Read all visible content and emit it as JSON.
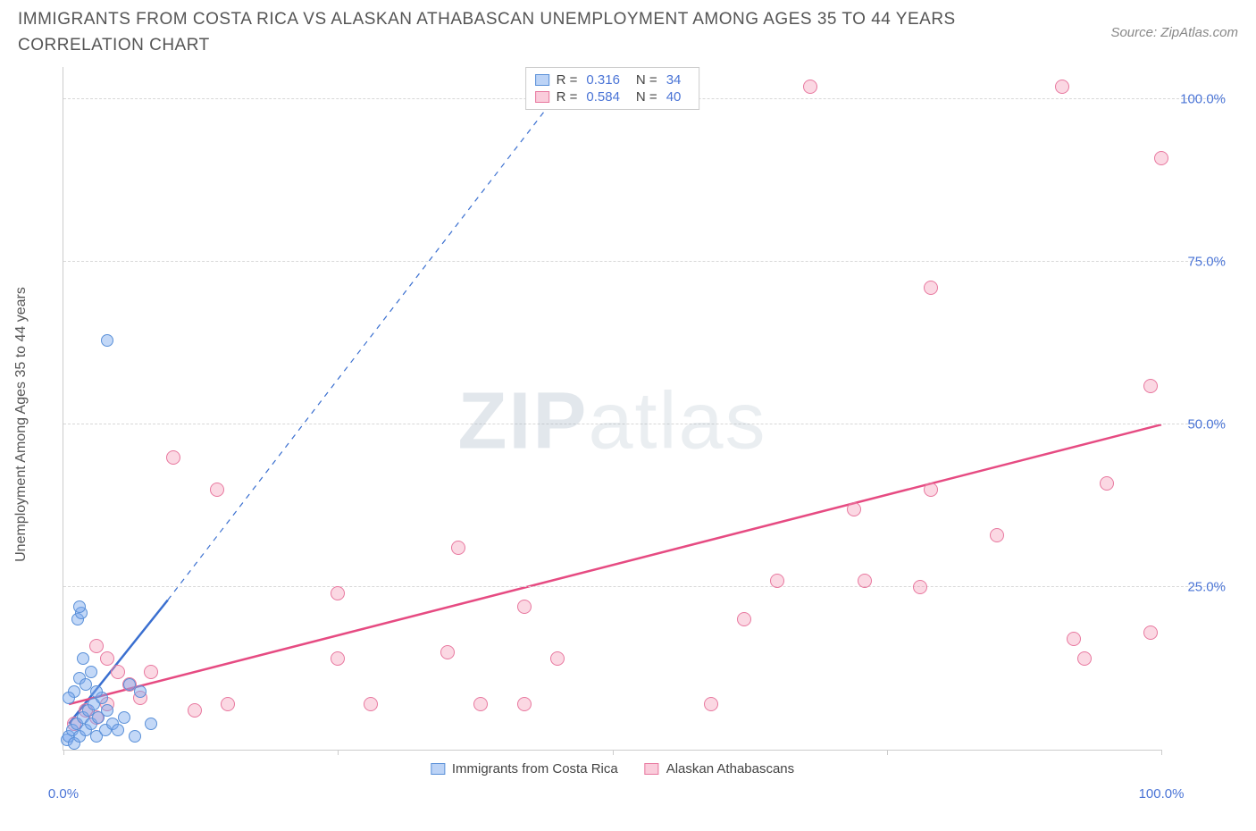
{
  "title": "IMMIGRANTS FROM COSTA RICA VS ALASKAN ATHABASCAN UNEMPLOYMENT AMONG AGES 35 TO 44 YEARS CORRELATION CHART",
  "source": "Source: ZipAtlas.com",
  "ylabel": "Unemployment Among Ages 35 to 44 years",
  "watermark_a": "ZIP",
  "watermark_b": "atlas",
  "chart": {
    "type": "scatter",
    "xlim": [
      0,
      100
    ],
    "ylim": [
      0,
      105
    ],
    "xtick_positions": [
      0,
      25,
      50,
      75,
      100
    ],
    "xtick_labels": [
      "0.0%",
      "",
      "",
      "",
      "100.0%"
    ],
    "ytick_positions": [
      25,
      50,
      75,
      100
    ],
    "ytick_labels": [
      "25.0%",
      "50.0%",
      "75.0%",
      "100.0%"
    ],
    "grid_color": "#d8d8d8",
    "axis_color": "#cccccc",
    "background_color": "#ffffff"
  },
  "series": {
    "blue": {
      "label": "Immigrants from Costa Rica",
      "color_fill": "rgba(122,168,237,0.45)",
      "color_stroke": "#5a90d8",
      "line_color": "#3a6fd0",
      "R": "0.316",
      "N": "34",
      "regression": {
        "x1": 0.5,
        "y1": 4,
        "x2": 9.5,
        "y2": 23,
        "dash_x2": 46,
        "dash_y2": 103
      },
      "points": [
        [
          0.3,
          1.5
        ],
        [
          0.5,
          2
        ],
        [
          0.8,
          3
        ],
        [
          1,
          1
        ],
        [
          1.2,
          4
        ],
        [
          1.5,
          2
        ],
        [
          1.8,
          5
        ],
        [
          2,
          3
        ],
        [
          2.3,
          6
        ],
        [
          2.5,
          4
        ],
        [
          2.8,
          7
        ],
        [
          3,
          2
        ],
        [
          3.2,
          5
        ],
        [
          3.5,
          8
        ],
        [
          3.8,
          3
        ],
        [
          4,
          6
        ],
        [
          1,
          9
        ],
        [
          1.5,
          11
        ],
        [
          2,
          10
        ],
        [
          2.5,
          12
        ],
        [
          0.5,
          8
        ],
        [
          3,
          9
        ],
        [
          1.8,
          14
        ],
        [
          1.3,
          20
        ],
        [
          1.6,
          21
        ],
        [
          1.5,
          22
        ],
        [
          4,
          63
        ],
        [
          4.5,
          4
        ],
        [
          5,
          3
        ],
        [
          5.5,
          5
        ],
        [
          6,
          10
        ],
        [
          6.5,
          2
        ],
        [
          7,
          9
        ],
        [
          8,
          4
        ]
      ]
    },
    "pink": {
      "label": "Alaskan Athabascans",
      "color_fill": "rgba(243,143,176,0.35)",
      "color_stroke": "#e8789f",
      "line_color": "#e64b82",
      "R": "0.584",
      "N": "40",
      "regression": {
        "x1": 0.5,
        "y1": 7,
        "x2": 100,
        "y2": 50
      },
      "points": [
        [
          1,
          4
        ],
        [
          2,
          6
        ],
        [
          3,
          5
        ],
        [
          4,
          7
        ],
        [
          5,
          12
        ],
        [
          6,
          10
        ],
        [
          3,
          16
        ],
        [
          4,
          14
        ],
        [
          7,
          8
        ],
        [
          8,
          12
        ],
        [
          12,
          6
        ],
        [
          15,
          7
        ],
        [
          10,
          45
        ],
        [
          14,
          40
        ],
        [
          25,
          24
        ],
        [
          25,
          14
        ],
        [
          28,
          7
        ],
        [
          35,
          15
        ],
        [
          36,
          31
        ],
        [
          38,
          7
        ],
        [
          42,
          22
        ],
        [
          42,
          7
        ],
        [
          45,
          14
        ],
        [
          59,
          7
        ],
        [
          62,
          20
        ],
        [
          65,
          26
        ],
        [
          73,
          26
        ],
        [
          78,
          25
        ],
        [
          72,
          37
        ],
        [
          79,
          40
        ],
        [
          85,
          33
        ],
        [
          92,
          17
        ],
        [
          93,
          14
        ],
        [
          95,
          41
        ],
        [
          99,
          18
        ],
        [
          68,
          102
        ],
        [
          91,
          102
        ],
        [
          99,
          56
        ],
        [
          100,
          91
        ],
        [
          79,
          71
        ]
      ]
    }
  },
  "legend_top": {
    "R_label": "R =",
    "N_label": "N ="
  },
  "legend_bottom_labels": {
    "blue": "Immigrants from Costa Rica",
    "pink": "Alaskan Athabascans"
  }
}
